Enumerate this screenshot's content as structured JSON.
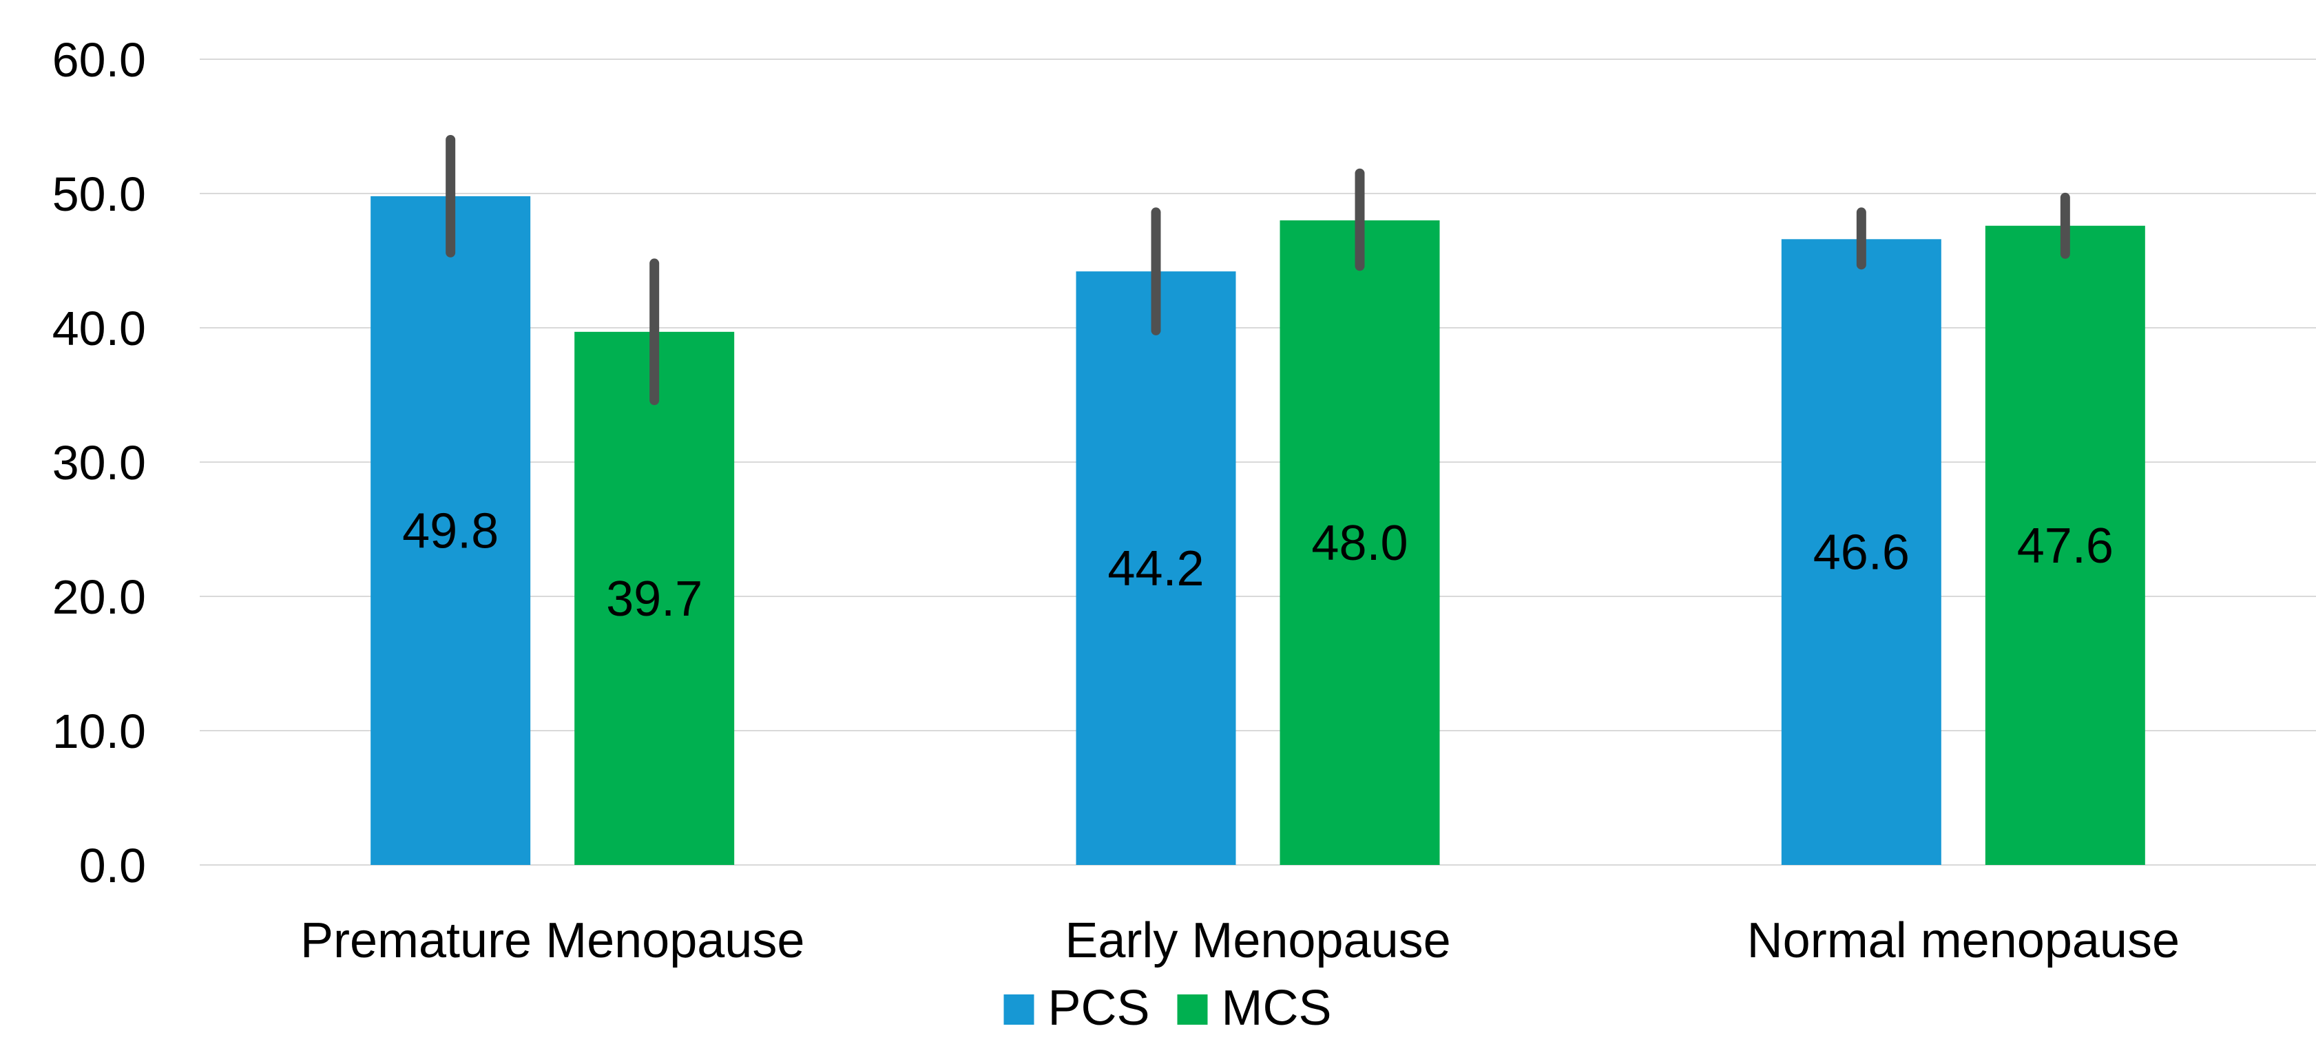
{
  "chart_data": {
    "type": "bar",
    "categories": [
      "Premature Menopause",
      "Early Menopause",
      "Normal menopause"
    ],
    "series": [
      {
        "name": "PCS",
        "values": [
          49.8,
          44.2,
          46.6
        ],
        "error_low": [
          45.6,
          39.8,
          44.7
        ],
        "error_high": [
          54.0,
          48.6,
          48.6
        ],
        "color": "#1798d4"
      },
      {
        "name": "MCS",
        "values": [
          39.7,
          48.0,
          47.6
        ],
        "error_low": [
          34.6,
          44.6,
          45.5
        ],
        "error_high": [
          44.8,
          51.5,
          49.7
        ],
        "color": "#00b050"
      }
    ],
    "y_ticks": [
      "0.0",
      "10.0",
      "20.0",
      "30.0",
      "40.0",
      "50.0",
      "60.0"
    ],
    "ylim": [
      0,
      60
    ],
    "grid": true,
    "legend": "bottom",
    "data_labels": true
  }
}
